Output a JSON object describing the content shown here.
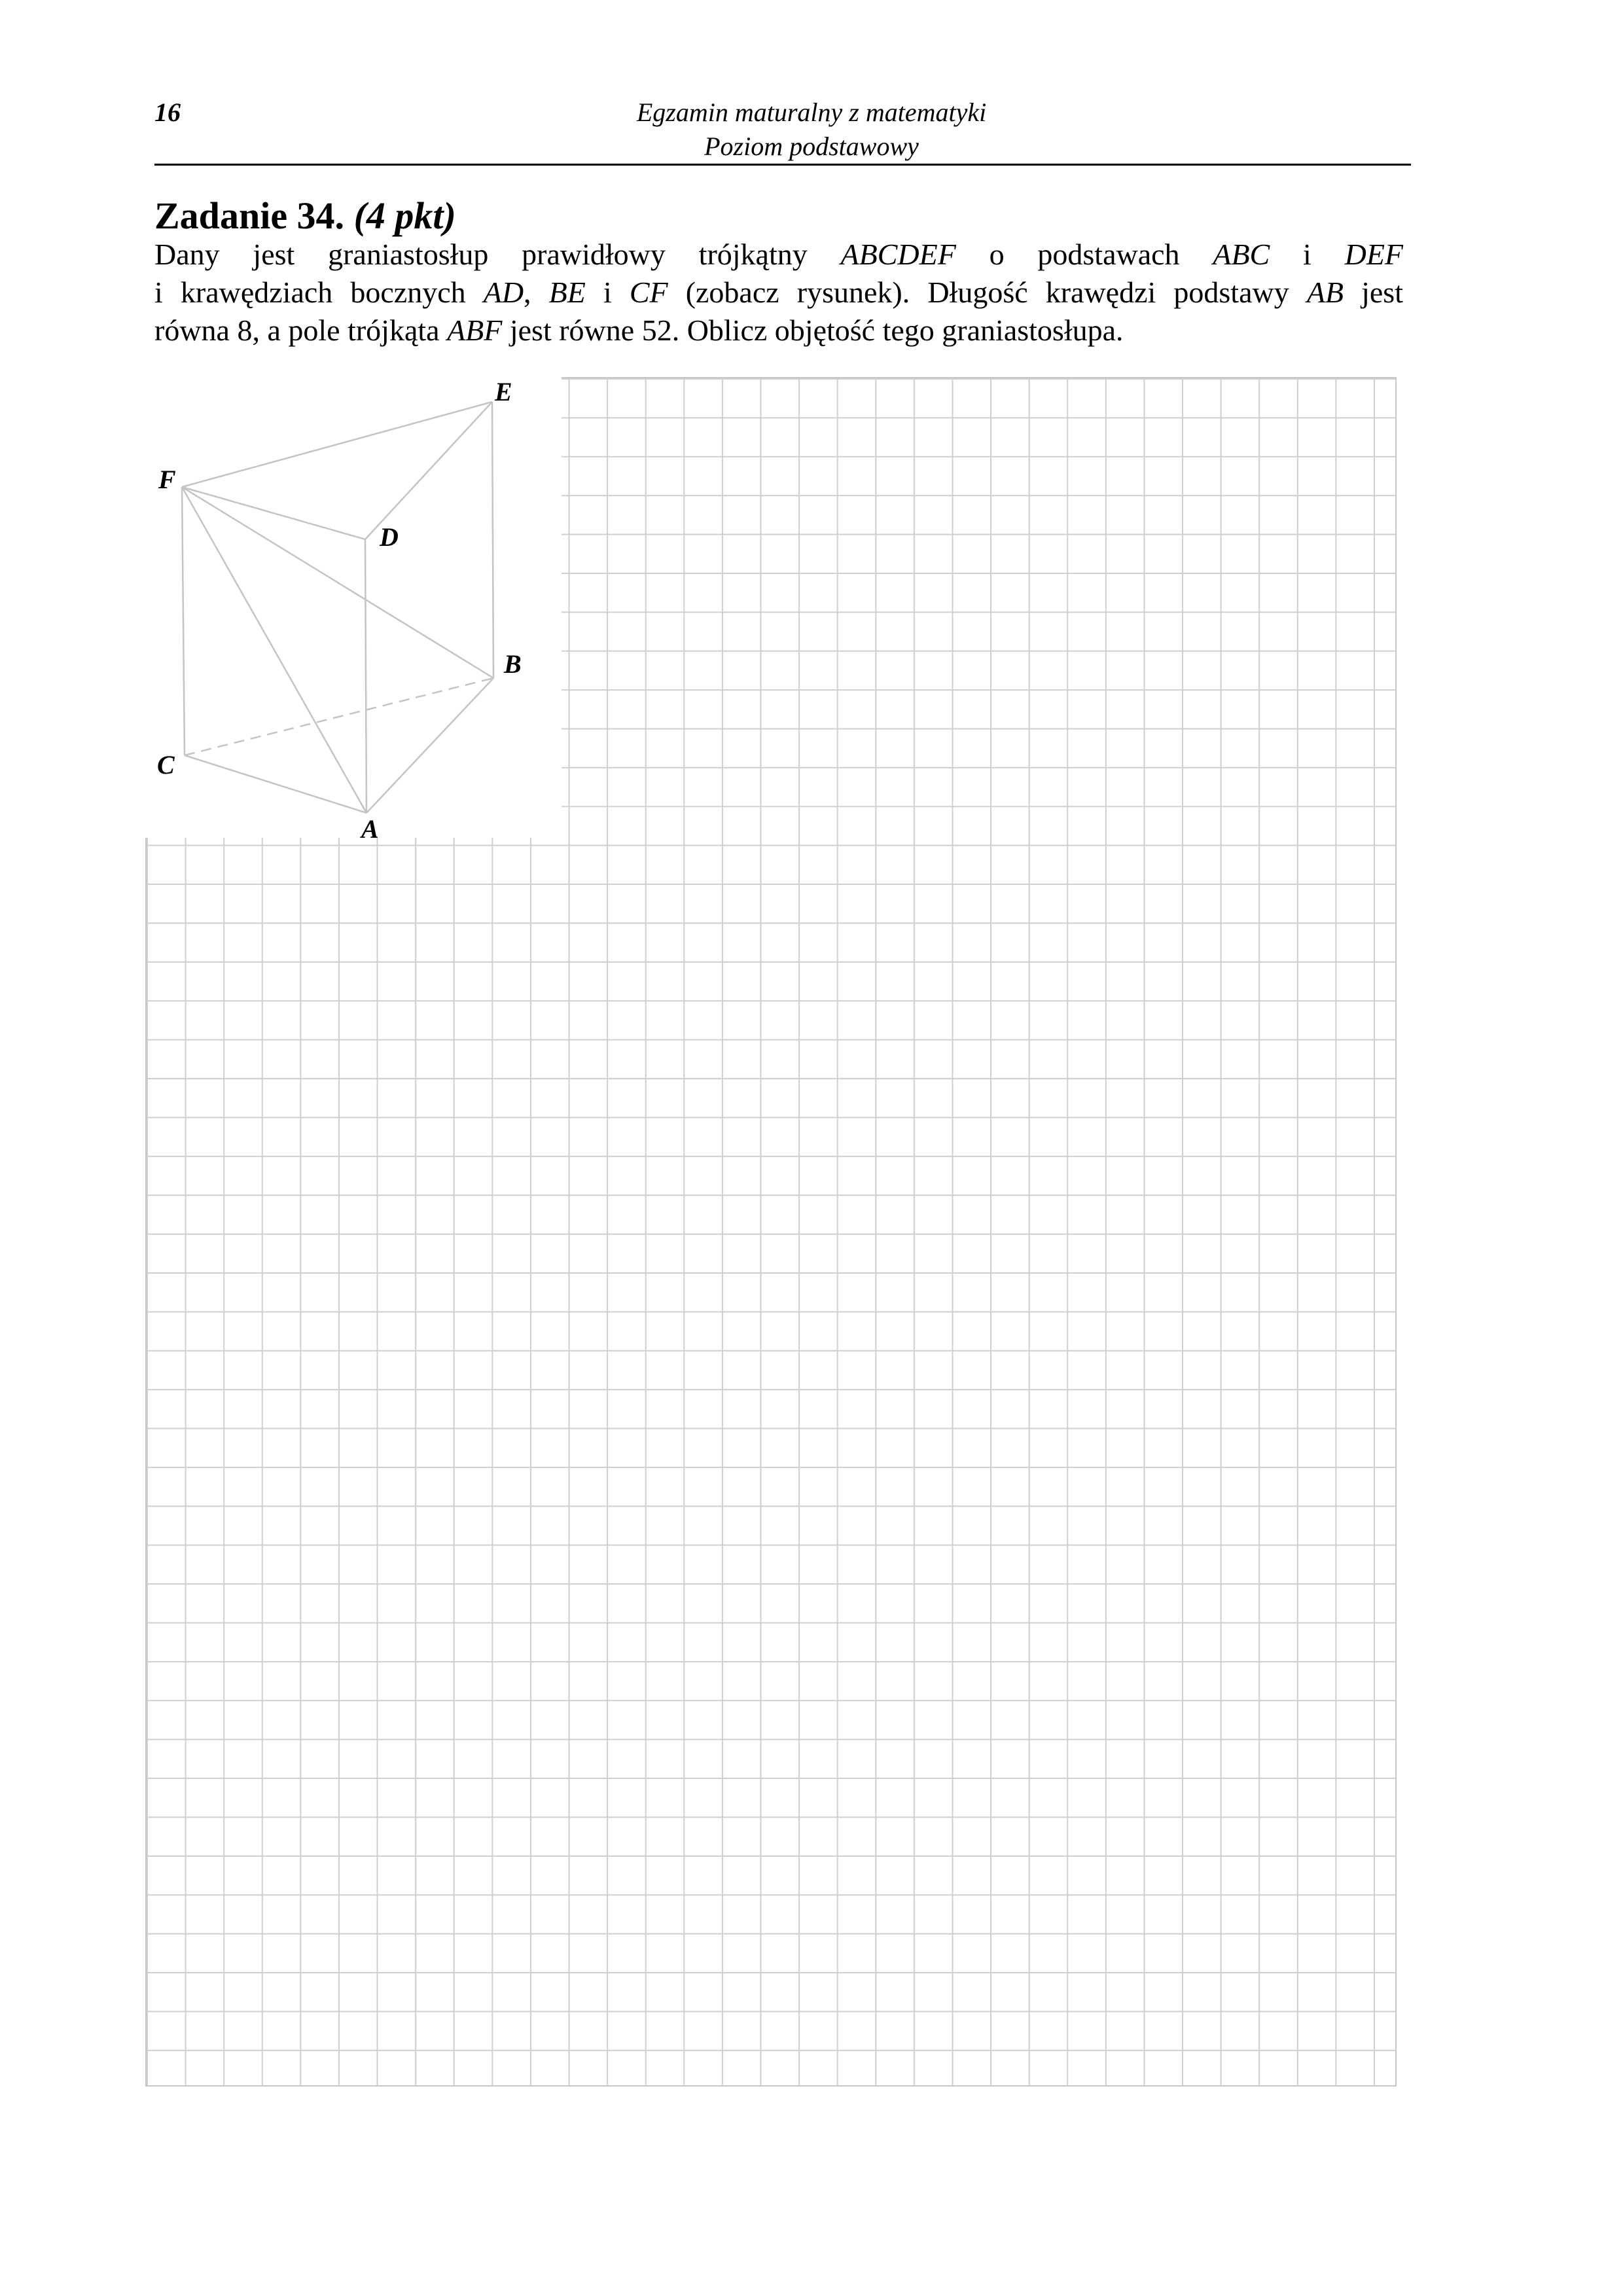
{
  "header": {
    "page_number": "16",
    "title": "Egzamin maturalny z matematyki",
    "subtitle": "Poziom podstawowy"
  },
  "task": {
    "number": "Zadanie 34.",
    "points": "(4 pkt)",
    "line1": {
      "t1": "Dany jest graniastosłup prawidłowy trójkątny ",
      "v1": "ABCDEF",
      "t2": " o podstawach ",
      "v2": "ABC",
      "t3": " i ",
      "v3": "DEF"
    },
    "line2": {
      "t1": "i krawędziach bocznych ",
      "v1": "AD",
      "t2": ", ",
      "v2": "BE",
      "t3": " i ",
      "v3": "CF",
      "t4": " (zobacz rysunek). Długość krawędzi podstawy ",
      "v4": "AB",
      "t5": " jest"
    },
    "line3": {
      "t1": "równa 8, a pole trójkąta ",
      "v1": "ABF",
      "t2": " jest równe 52. Oblicz objętość tego graniastosłupa."
    }
  },
  "figure": {
    "vertices": {
      "A": "A",
      "B": "B",
      "C": "C",
      "D": "D",
      "E": "E",
      "F": "F"
    }
  }
}
